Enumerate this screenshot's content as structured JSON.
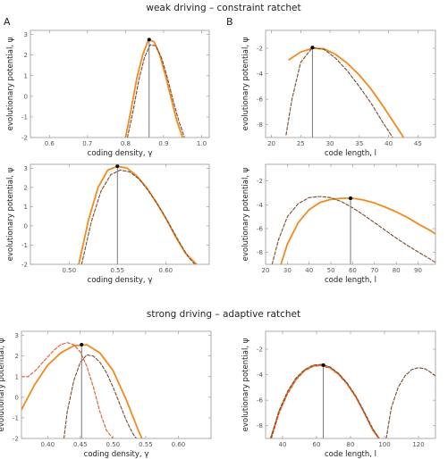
{
  "sections": {
    "weak_title": "weak driving – constraint ratchet",
    "strong_title": "strong driving – adaptive ratchet"
  },
  "panel_labels": {
    "a": "A",
    "b": "B"
  },
  "colors": {
    "orange": "#f28a1e",
    "brown_dash": "#7a4a2a",
    "red_dash": "#e05a33",
    "marker": "#000000",
    "vline": "#777777"
  },
  "chart_data": [
    {
      "id": "p11",
      "type": "line",
      "xlabel": "coding density, γ",
      "ylabel": "evolutionary potential, ψ",
      "xlim": [
        0.55,
        1.02
      ],
      "ylim": [
        -2,
        3.2
      ],
      "xticks": [
        0.6,
        0.7,
        0.8,
        0.9,
        1.0
      ],
      "xtick_labels": [
        "0.6",
        "0.7",
        "0.8",
        "0.9",
        "1.0"
      ],
      "yticks": [
        -2,
        -1,
        0,
        1,
        2,
        3
      ],
      "ytick_labels": [
        "-2",
        "-1",
        "0",
        "1",
        "2",
        "3"
      ],
      "series": [
        {
          "style": "orange",
          "x": [
            0.8,
            0.815,
            0.83,
            0.845,
            0.86,
            0.875,
            0.89,
            0.905,
            0.92,
            0.935,
            0.95,
            0.96
          ],
          "y": [
            -2.0,
            -0.6,
            0.9,
            2.0,
            2.75,
            2.65,
            2.0,
            1.0,
            -0.1,
            -1.2,
            -2.0,
            -2.4
          ]
        },
        {
          "style": "brown_dash",
          "x": [
            0.805,
            0.82,
            0.835,
            0.85,
            0.865,
            0.88,
            0.895,
            0.91,
            0.925,
            0.94,
            0.955
          ],
          "y": [
            -2.0,
            -0.7,
            0.8,
            1.9,
            2.5,
            2.45,
            1.85,
            0.9,
            -0.2,
            -1.2,
            -2.0
          ]
        }
      ],
      "marker": {
        "x": 0.862,
        "y": 2.75
      }
    },
    {
      "id": "p12",
      "type": "line",
      "xlabel": "code length, l",
      "ylabel": "evolutionary potential, ψ",
      "xlim": [
        19,
        48
      ],
      "ylim": [
        -9,
        -0.6
      ],
      "xticks": [
        20,
        25,
        30,
        35,
        40,
        45
      ],
      "xtick_labels": [
        "20",
        "25",
        "30",
        "35",
        "40",
        "45"
      ],
      "yticks": [
        -8,
        -6,
        -4,
        -2
      ],
      "ytick_labels": [
        "-8",
        "-6",
        "-4",
        "-2"
      ],
      "series": [
        {
          "style": "orange",
          "x": [
            23,
            25,
            27,
            29,
            31,
            33,
            35,
            37,
            39,
            41,
            43
          ],
          "y": [
            -2.9,
            -2.3,
            -2.0,
            -2.05,
            -2.5,
            -3.2,
            -4.1,
            -5.2,
            -6.5,
            -7.9,
            -9.3
          ]
        },
        {
          "style": "brown_dash",
          "x": [
            22.5,
            23.5,
            25,
            27,
            29,
            31,
            33,
            35,
            37,
            39,
            41,
            42
          ],
          "y": [
            -8.8,
            -6.0,
            -3.1,
            -1.95,
            -2.1,
            -2.8,
            -3.8,
            -5.0,
            -6.3,
            -7.8,
            -9.2,
            -9.9
          ]
        }
      ],
      "marker": {
        "x": 27,
        "y": -1.95
      }
    },
    {
      "id": "p21",
      "type": "line",
      "xlabel": "coding density, γ",
      "ylabel": "evolutionary potential, ψ",
      "xlim": [
        0.46,
        0.645
      ],
      "ylim": [
        -2,
        3.2
      ],
      "xticks": [
        0.5,
        0.55,
        0.6
      ],
      "xtick_labels": [
        "0.50",
        "0.55",
        "0.60"
      ],
      "yticks": [
        -2,
        -1,
        0,
        1,
        2,
        3
      ],
      "ytick_labels": [
        "-2",
        "-1",
        "0",
        "1",
        "2",
        "3"
      ],
      "series": [
        {
          "style": "orange",
          "x": [
            0.51,
            0.52,
            0.53,
            0.54,
            0.55,
            0.56,
            0.57,
            0.58,
            0.59,
            0.6,
            0.61,
            0.62,
            0.632
          ],
          "y": [
            -2.0,
            0.3,
            2.0,
            2.9,
            3.1,
            3.0,
            2.6,
            2.0,
            1.25,
            0.4,
            -0.55,
            -1.4,
            -2.0
          ]
        },
        {
          "style": "brown_dash",
          "x": [
            0.513,
            0.523,
            0.533,
            0.543,
            0.553,
            0.563,
            0.573,
            0.583,
            0.593,
            0.603,
            0.613,
            0.623,
            0.63
          ],
          "y": [
            -2.0,
            0.2,
            1.8,
            2.65,
            2.9,
            2.8,
            2.4,
            1.75,
            1.0,
            0.15,
            -0.75,
            -1.6,
            -2.0
          ]
        }
      ],
      "marker": {
        "x": 0.55,
        "y": 3.1
      }
    },
    {
      "id": "p22",
      "type": "line",
      "xlabel": "code length, l",
      "ylabel": "evolutionary potential, ψ",
      "xlim": [
        20,
        98
      ],
      "ylim": [
        -9,
        -0.6
      ],
      "xticks": [
        20,
        30,
        40,
        50,
        60,
        70,
        80,
        90
      ],
      "xtick_labels": [
        "20",
        "30",
        "40",
        "50",
        "60",
        "70",
        "80",
        "90"
      ],
      "yticks": [
        -8,
        -6,
        -4,
        -2
      ],
      "ytick_labels": [
        "-8",
        "-6",
        "-4",
        "-2"
      ],
      "series": [
        {
          "style": "orange",
          "x": [
            27,
            30,
            35,
            40,
            45,
            50,
            55,
            60,
            65,
            70,
            75,
            80,
            85,
            90,
            95,
            98
          ],
          "y": [
            -9.0,
            -7.3,
            -5.5,
            -4.4,
            -3.8,
            -3.55,
            -3.45,
            -3.45,
            -3.6,
            -3.85,
            -4.2,
            -4.6,
            -5.05,
            -5.6,
            -6.1,
            -6.45
          ]
        },
        {
          "style": "brown_dash",
          "x": [
            23,
            26,
            30,
            35,
            40,
            45,
            50,
            55,
            60,
            65,
            70,
            75,
            80,
            85,
            90,
            95,
            98
          ],
          "y": [
            -9.0,
            -6.9,
            -5.0,
            -3.9,
            -3.4,
            -3.3,
            -3.4,
            -3.75,
            -4.25,
            -4.85,
            -5.5,
            -6.15,
            -6.8,
            -7.4,
            -7.95,
            -8.5,
            -8.85
          ]
        }
      ],
      "marker": {
        "x": 59,
        "y": -3.45
      }
    },
    {
      "id": "p31",
      "type": "line",
      "xlabel": "coding density, γ",
      "ylabel": "evolutionary potential, ψ",
      "xlim": [
        0.36,
        0.65
      ],
      "ylim": [
        -2,
        3.2
      ],
      "xticks": [
        0.4,
        0.45,
        0.5,
        0.55,
        0.6
      ],
      "xtick_labels": [
        "0.40",
        "0.45",
        "0.50",
        "0.55",
        "0.60"
      ],
      "yticks": [
        -2,
        -1,
        0,
        1,
        2,
        3
      ],
      "ytick_labels": [
        "-2",
        "-1",
        "0",
        "1",
        "2",
        "3"
      ],
      "series": [
        {
          "style": "orange",
          "x": [
            0.36,
            0.38,
            0.4,
            0.42,
            0.44,
            0.46,
            0.48,
            0.5,
            0.52,
            0.54,
            0.545
          ],
          "y": [
            -0.6,
            0.6,
            1.55,
            2.15,
            2.5,
            2.55,
            2.15,
            1.3,
            -0.1,
            -1.7,
            -2.05
          ]
        },
        {
          "style": "brown_dash",
          "x": [
            0.425,
            0.43,
            0.44,
            0.45,
            0.46,
            0.47,
            0.48,
            0.49,
            0.5,
            0.51,
            0.52,
            0.53,
            0.537
          ],
          "y": [
            -2.0,
            -0.7,
            0.8,
            1.7,
            2.05,
            2.0,
            1.7,
            1.2,
            0.5,
            -0.3,
            -1.1,
            -1.75,
            -2.05
          ]
        },
        {
          "style": "red_dash",
          "x": [
            0.36,
            0.37,
            0.38,
            0.39,
            0.4,
            0.41,
            0.42,
            0.43,
            0.44,
            0.45,
            0.46,
            0.47,
            0.48,
            0.49,
            0.5
          ],
          "y": [
            1.0,
            1.0,
            1.25,
            1.6,
            1.95,
            2.3,
            2.55,
            2.65,
            2.55,
            2.2,
            1.5,
            0.5,
            -0.7,
            -1.6,
            -2.0
          ]
        }
      ],
      "marker": {
        "x": 0.452,
        "y": 2.55
      }
    },
    {
      "id": "p32",
      "type": "line",
      "xlabel": "code length, l",
      "ylabel": "evolutionary potential, ψ",
      "xlim": [
        30,
        130
      ],
      "ylim": [
        -9,
        -0.6
      ],
      "xticks": [
        40,
        60,
        80,
        100,
        120
      ],
      "xtick_labels": [
        "40",
        "60",
        "80",
        "100",
        "120"
      ],
      "yticks": [
        -8,
        -6,
        -4,
        -2
      ],
      "ytick_labels": [
        "-8",
        "-6",
        "-4",
        "-2"
      ],
      "series": [
        {
          "style": "orange",
          "x": [
            33,
            38,
            43,
            48,
            53,
            58,
            63,
            68,
            73,
            78,
            83,
            88,
            93,
            97
          ],
          "y": [
            -9.0,
            -6.9,
            -5.4,
            -4.3,
            -3.65,
            -3.3,
            -3.25,
            -3.45,
            -3.95,
            -4.7,
            -5.7,
            -6.95,
            -8.3,
            -9.0
          ]
        },
        {
          "style": "red_dash",
          "x": [
            33.5,
            38,
            43,
            48,
            53,
            58,
            63,
            68,
            73,
            78,
            83,
            88,
            93,
            96.5
          ],
          "y": [
            -9.0,
            -7.0,
            -5.5,
            -4.4,
            -3.7,
            -3.35,
            -3.3,
            -3.5,
            -4.0,
            -4.75,
            -5.75,
            -7.0,
            -8.35,
            -9.0
          ]
        },
        {
          "style": "brown_dash",
          "x": [
            33,
            38,
            43,
            48,
            53,
            58,
            63,
            68,
            73,
            78,
            83,
            88,
            93,
            98,
            100
          ],
          "y": [
            -9.0,
            -6.8,
            -5.3,
            -4.25,
            -3.6,
            -3.25,
            -3.2,
            -3.4,
            -3.9,
            -4.65,
            -5.65,
            -6.9,
            -8.2,
            -9.3,
            -9.9
          ]
        },
        {
          "style": "brown_dash",
          "x": [
            101,
            104,
            108,
            112,
            116,
            120,
            124,
            127,
            130
          ],
          "y": [
            -9.0,
            -6.6,
            -5.0,
            -4.1,
            -3.6,
            -3.45,
            -3.55,
            -3.8,
            -4.1
          ]
        }
      ],
      "marker": {
        "x": 64,
        "y": -3.25
      }
    }
  ]
}
